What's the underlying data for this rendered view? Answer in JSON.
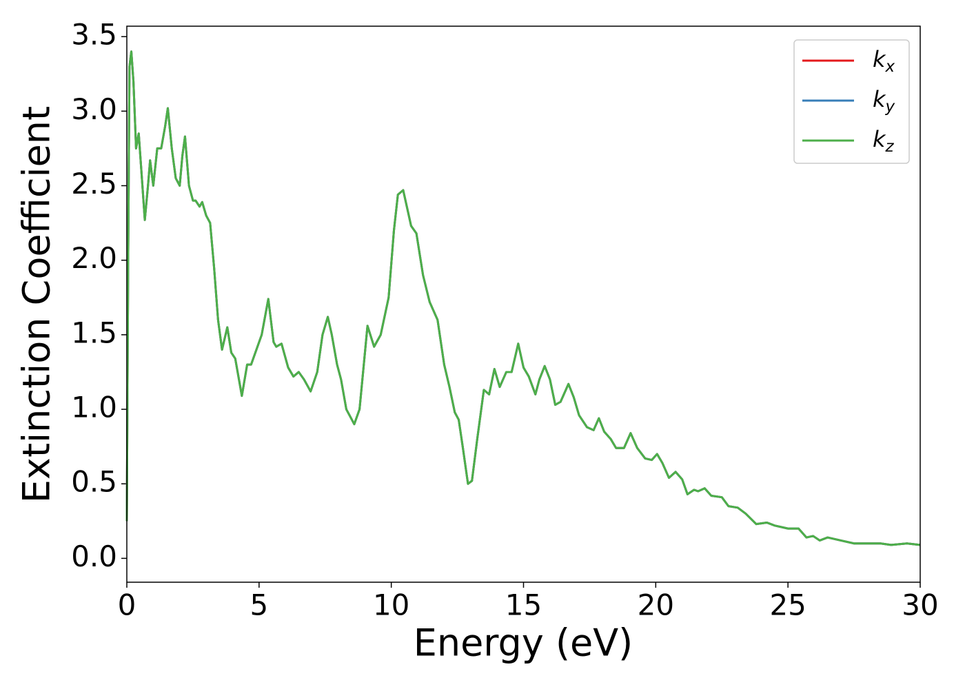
{
  "chart_data": {
    "type": "line",
    "xlabel": "Energy (eV)",
    "ylabel": "Extinction Coefficient",
    "xlim": [
      0,
      30
    ],
    "ylim": [
      -0.16,
      3.57
    ],
    "xticks": [
      0,
      5,
      10,
      15,
      20,
      25,
      30
    ],
    "yticks": [
      {
        "value": 0,
        "label": "0.0"
      },
      0.5,
      {
        "value": 1,
        "label": "1.0"
      },
      1.5,
      {
        "value": 2,
        "label": "2.0"
      },
      2.5,
      {
        "value": 3,
        "label": "3.0"
      },
      3.5
    ],
    "legend": "upper right",
    "x": [
      0,
      0.05,
      0.1,
      0.17,
      0.25,
      0.35,
      0.45,
      0.55,
      0.68,
      0.8,
      0.88,
      1.0,
      1.15,
      1.3,
      1.45,
      1.55,
      1.7,
      1.85,
      2.0,
      2.1,
      2.2,
      2.35,
      2.5,
      2.6,
      2.75,
      2.85,
      3.0,
      3.15,
      3.3,
      3.45,
      3.6,
      3.8,
      3.95,
      4.1,
      4.35,
      4.55,
      4.7,
      4.9,
      5.1,
      5.35,
      5.55,
      5.65,
      5.85,
      6.1,
      6.3,
      6.5,
      6.7,
      6.95,
      7.2,
      7.4,
      7.6,
      7.75,
      7.95,
      8.1,
      8.3,
      8.6,
      8.8,
      9.1,
      9.35,
      9.6,
      9.9,
      10.1,
      10.25,
      10.45,
      10.6,
      10.75,
      10.95,
      11.2,
      11.45,
      11.75,
      12.0,
      12.2,
      12.4,
      12.55,
      12.7,
      12.9,
      13.05,
      13.25,
      13.5,
      13.7,
      13.9,
      14.1,
      14.35,
      14.55,
      14.8,
      15.0,
      15.2,
      15.45,
      15.6,
      15.8,
      16.0,
      16.2,
      16.4,
      16.7,
      16.9,
      17.1,
      17.4,
      17.65,
      17.85,
      18.05,
      18.3,
      18.5,
      18.8,
      19.05,
      19.3,
      19.6,
      19.85,
      20.05,
      20.25,
      20.5,
      20.75,
      21.0,
      21.2,
      21.45,
      21.6,
      21.85,
      22.1,
      22.5,
      22.75,
      23.1,
      23.4,
      23.8,
      24.2,
      24.5,
      25.0,
      25.4,
      25.7,
      25.95,
      26.2,
      26.5,
      27.0,
      27.5,
      28.0,
      28.5,
      28.9,
      29.5,
      30.0
    ],
    "series": [
      {
        "name": "kx",
        "color": "#e41a1c",
        "values": [
          0.25,
          2.0,
          3.3,
          3.4,
          3.2,
          2.75,
          2.85,
          2.6,
          2.27,
          2.5,
          2.67,
          2.5,
          2.75,
          2.75,
          2.9,
          3.02,
          2.75,
          2.55,
          2.5,
          2.7,
          2.83,
          2.5,
          2.4,
          2.4,
          2.36,
          2.39,
          2.3,
          2.25,
          1.95,
          1.6,
          1.4,
          1.55,
          1.38,
          1.34,
          1.09,
          1.3,
          1.3,
          1.4,
          1.5,
          1.74,
          1.45,
          1.42,
          1.44,
          1.28,
          1.22,
          1.25,
          1.2,
          1.12,
          1.25,
          1.5,
          1.62,
          1.5,
          1.3,
          1.2,
          1.0,
          0.9,
          1.0,
          1.56,
          1.42,
          1.5,
          1.75,
          2.2,
          2.44,
          2.47,
          2.35,
          2.23,
          2.18,
          1.9,
          1.72,
          1.6,
          1.3,
          1.15,
          0.98,
          0.93,
          0.75,
          0.5,
          0.52,
          0.8,
          1.13,
          1.1,
          1.27,
          1.15,
          1.25,
          1.25,
          1.44,
          1.28,
          1.22,
          1.1,
          1.2,
          1.29,
          1.2,
          1.03,
          1.05,
          1.17,
          1.08,
          0.96,
          0.88,
          0.86,
          0.94,
          0.85,
          0.8,
          0.74,
          0.74,
          0.84,
          0.74,
          0.67,
          0.66,
          0.7,
          0.64,
          0.54,
          0.58,
          0.53,
          0.43,
          0.46,
          0.45,
          0.47,
          0.42,
          0.41,
          0.35,
          0.34,
          0.3,
          0.23,
          0.24,
          0.22,
          0.2,
          0.2,
          0.14,
          0.15,
          0.12,
          0.14,
          0.12,
          0.1,
          0.1,
          0.1,
          0.09,
          0.1,
          0.09
        ]
      },
      {
        "name": "ky",
        "color": "#377eb8",
        "values": [
          0.25,
          2.0,
          3.3,
          3.4,
          3.2,
          2.75,
          2.85,
          2.6,
          2.27,
          2.5,
          2.67,
          2.5,
          2.75,
          2.75,
          2.9,
          3.02,
          2.75,
          2.55,
          2.5,
          2.7,
          2.83,
          2.5,
          2.4,
          2.4,
          2.36,
          2.39,
          2.3,
          2.25,
          1.95,
          1.6,
          1.4,
          1.55,
          1.38,
          1.34,
          1.09,
          1.3,
          1.3,
          1.4,
          1.5,
          1.74,
          1.45,
          1.42,
          1.44,
          1.28,
          1.22,
          1.25,
          1.2,
          1.12,
          1.25,
          1.5,
          1.62,
          1.5,
          1.3,
          1.2,
          1.0,
          0.9,
          1.0,
          1.56,
          1.42,
          1.5,
          1.75,
          2.2,
          2.44,
          2.47,
          2.35,
          2.23,
          2.18,
          1.9,
          1.72,
          1.6,
          1.3,
          1.15,
          0.98,
          0.93,
          0.75,
          0.5,
          0.52,
          0.8,
          1.13,
          1.1,
          1.27,
          1.15,
          1.25,
          1.25,
          1.44,
          1.28,
          1.22,
          1.1,
          1.2,
          1.29,
          1.2,
          1.03,
          1.05,
          1.17,
          1.08,
          0.96,
          0.88,
          0.86,
          0.94,
          0.85,
          0.8,
          0.74,
          0.74,
          0.84,
          0.74,
          0.67,
          0.66,
          0.7,
          0.64,
          0.54,
          0.58,
          0.53,
          0.43,
          0.46,
          0.45,
          0.47,
          0.42,
          0.41,
          0.35,
          0.34,
          0.3,
          0.23,
          0.24,
          0.22,
          0.2,
          0.2,
          0.14,
          0.15,
          0.12,
          0.14,
          0.12,
          0.1,
          0.1,
          0.1,
          0.09,
          0.1,
          0.09
        ]
      },
      {
        "name": "kz",
        "color": "#4daf4a",
        "values": [
          0.25,
          2.0,
          3.3,
          3.4,
          3.2,
          2.75,
          2.85,
          2.6,
          2.27,
          2.5,
          2.67,
          2.5,
          2.75,
          2.75,
          2.9,
          3.02,
          2.75,
          2.55,
          2.5,
          2.7,
          2.83,
          2.5,
          2.4,
          2.4,
          2.36,
          2.39,
          2.3,
          2.25,
          1.95,
          1.6,
          1.4,
          1.55,
          1.38,
          1.34,
          1.09,
          1.3,
          1.3,
          1.4,
          1.5,
          1.74,
          1.45,
          1.42,
          1.44,
          1.28,
          1.22,
          1.25,
          1.2,
          1.12,
          1.25,
          1.5,
          1.62,
          1.5,
          1.3,
          1.2,
          1.0,
          0.9,
          1.0,
          1.56,
          1.42,
          1.5,
          1.75,
          2.2,
          2.44,
          2.47,
          2.35,
          2.23,
          2.18,
          1.9,
          1.72,
          1.6,
          1.3,
          1.15,
          0.98,
          0.93,
          0.75,
          0.5,
          0.52,
          0.8,
          1.13,
          1.1,
          1.27,
          1.15,
          1.25,
          1.25,
          1.44,
          1.28,
          1.22,
          1.1,
          1.2,
          1.29,
          1.2,
          1.03,
          1.05,
          1.17,
          1.08,
          0.96,
          0.88,
          0.86,
          0.94,
          0.85,
          0.8,
          0.74,
          0.74,
          0.84,
          0.74,
          0.67,
          0.66,
          0.7,
          0.64,
          0.54,
          0.58,
          0.53,
          0.43,
          0.46,
          0.45,
          0.47,
          0.42,
          0.41,
          0.35,
          0.34,
          0.3,
          0.23,
          0.24,
          0.22,
          0.2,
          0.2,
          0.14,
          0.15,
          0.12,
          0.14,
          0.12,
          0.1,
          0.1,
          0.1,
          0.09,
          0.1,
          0.09
        ]
      }
    ]
  }
}
